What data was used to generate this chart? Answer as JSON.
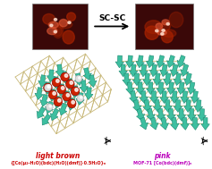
{
  "bg_color": "#ffffff",
  "top_arrow_text": "SC-SC",
  "left_label1": "light brown",
  "left_label2": "{[Co(μ₂-H₂O)(bdc)(H₂O)(dmf)]·0.5H₂O}ₙ",
  "right_label1": "pink",
  "right_label2": "MOF-71 [Co(bdc)(dmf)]ₙ",
  "left_label_color": "#cc0000",
  "right_label_color": "#bb00bb",
  "teal": "#3dbfa0",
  "teal_dark": "#1a8870",
  "stick_color": "#c8b878",
  "red_sphere": "#cc2200",
  "white_sphere": "#e8e8e8",
  "photo_bg": "#3a0808",
  "photo_highlight1": "#aa2200",
  "photo_highlight2": "#dd5533"
}
